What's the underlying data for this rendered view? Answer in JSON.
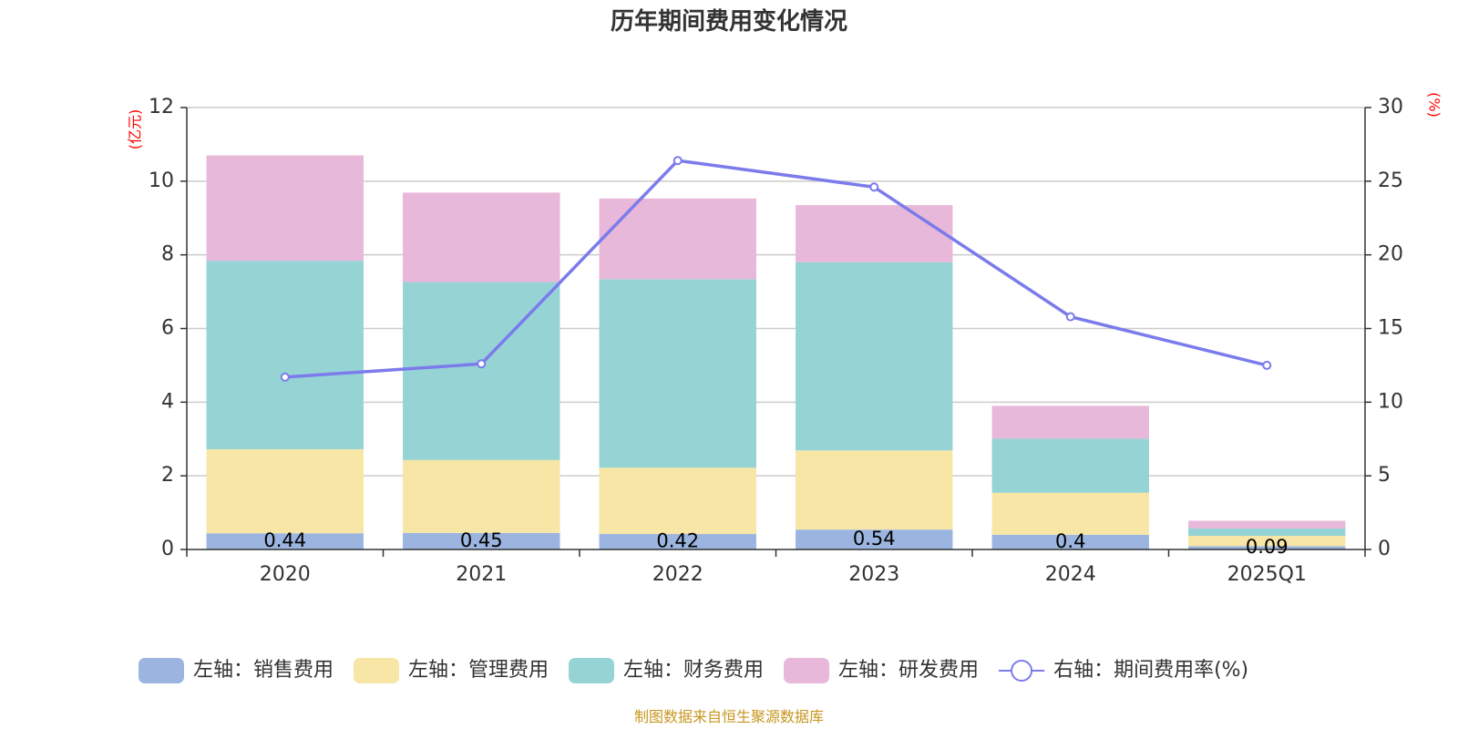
{
  "source_note": "制图数据来自恒生聚源数据库",
  "colors": {
    "销售费用": "#9bb5e0",
    "管理费用": "#f7e6a6",
    "财务费用": "#96d3d5",
    "研发费用": "#e7b8d9",
    "期间费用率": "#7b7bec",
    "unit": "#ff0000",
    "source": "#c8961e"
  },
  "legend": [
    {
      "label": "左轴：销售费用",
      "type": "bar",
      "color": "#9bb5e0"
    },
    {
      "label": "左轴：管理费用",
      "type": "bar",
      "color": "#f7e6a6"
    },
    {
      "label": "左轴：财务费用",
      "type": "bar",
      "color": "#96d3d5"
    },
    {
      "label": "左轴：研发费用",
      "type": "bar",
      "color": "#e7b8d9"
    },
    {
      "label": "右轴：期间费用率(%)",
      "type": "line",
      "color": "#7b7bec"
    }
  ],
  "chart_data": {
    "type": "bar",
    "title": "历年期间费用变化情况",
    "categories": [
      "2020",
      "2021",
      "2022",
      "2023",
      "2024",
      "2025Q1"
    ],
    "stacked": true,
    "left_axis": {
      "unit": "(亿元)",
      "ylim": [
        0,
        12
      ],
      "ticks": [
        "0",
        "2",
        "4",
        "6",
        "8",
        "10",
        "12"
      ]
    },
    "right_axis": {
      "unit": "(%)",
      "ylim": [
        0,
        30
      ],
      "ticks": [
        "0",
        "5",
        "10",
        "15",
        "20",
        "25",
        "30"
      ]
    },
    "grid": true,
    "legend_position": "bottom",
    "series": [
      {
        "name": "销售费用",
        "axis": "left",
        "type": "bar",
        "values": [
          0.44,
          0.45,
          0.42,
          0.54,
          0.4,
          0.09
        ],
        "data_labels": [
          "0.44",
          "0.45",
          "0.42",
          "0.54",
          "0.4",
          "0.09"
        ]
      },
      {
        "name": "管理费用",
        "axis": "left",
        "type": "bar",
        "values": [
          2.28,
          1.98,
          1.8,
          2.15,
          1.14,
          0.28
        ]
      },
      {
        "name": "财务费用",
        "axis": "left",
        "type": "bar",
        "values": [
          5.12,
          4.83,
          5.12,
          5.11,
          1.47,
          0.2
        ]
      },
      {
        "name": "研发费用",
        "axis": "left",
        "type": "bar",
        "values": [
          2.86,
          2.43,
          2.19,
          1.55,
          0.89,
          0.21
        ]
      },
      {
        "name": "期间费用率(%)",
        "axis": "right",
        "type": "line",
        "values": [
          11.7,
          12.6,
          26.4,
          24.6,
          15.8,
          12.5
        ]
      }
    ]
  }
}
